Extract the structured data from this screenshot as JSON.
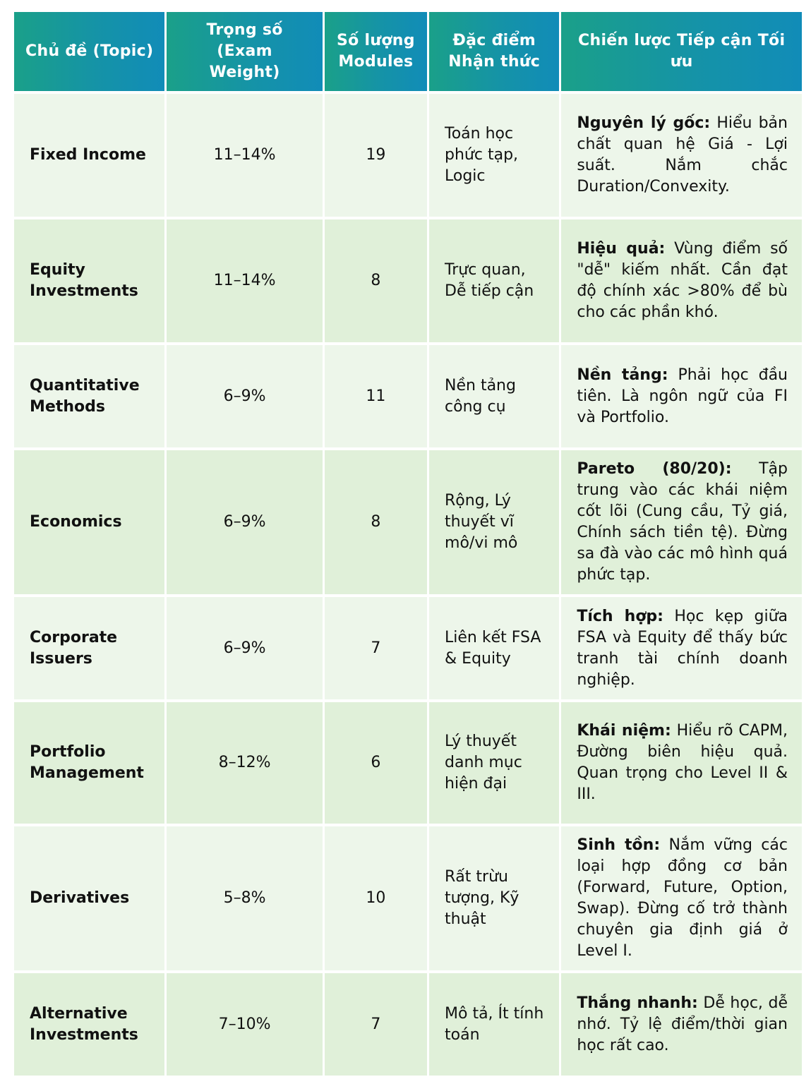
{
  "headers": {
    "topic": "Chủ đề (Topic)",
    "weight": "Trọng số (Exam Weight)",
    "modules": "Số lượng Modules",
    "traits": "Đặc điểm Nhận thức",
    "strategy": "Chiến lược Tiếp cận Tối ưu"
  },
  "rows": [
    {
      "topic": "Fixed Income",
      "weight": "11–14%",
      "modules": "19",
      "traits": "Toán học phức tạp, Logic",
      "strategy_lead": "Nguyên lý gốc:",
      "strategy_text": " Hiểu bản chất quan hệ Giá - Lợi suất. Nắm chắc Duration/Convexity."
    },
    {
      "topic": "Equity Investments",
      "weight": "11–14%",
      "modules": "8",
      "traits": "Trực quan, Dễ tiếp cận",
      "strategy_lead": "Hiệu quả:",
      "strategy_text": " Vùng điểm số \"dễ\" kiếm nhất. Cần đạt độ chính xác >80% để bù cho các phần khó."
    },
    {
      "topic": "Quantitative Methods",
      "weight": "6–9%",
      "modules": "11",
      "traits": "Nền tảng công cụ",
      "strategy_lead": "Nền tảng:",
      "strategy_text": " Phải học đầu tiên. Là ngôn ngữ của FI và Portfolio."
    },
    {
      "topic": "Economics",
      "weight": "6–9%",
      "modules": "8",
      "traits": "Rộng, Lý thuyết vĩ mô/vi mô",
      "strategy_lead": "Pareto (80/20):",
      "strategy_text": " Tập trung vào các khái niệm cốt lõi (Cung cầu, Tỷ giá, Chính sách tiền tệ). Đừng sa đà vào các mô hình quá phức tạp."
    },
    {
      "topic": "Corporate Issuers",
      "weight": "6–9%",
      "modules": "7",
      "traits": "Liên kết FSA & Equity",
      "strategy_lead": "Tích hợp:",
      "strategy_text": " Học kẹp giữa FSA và Equity để thấy bức tranh tài chính doanh nghiệp."
    },
    {
      "topic": "Portfolio Management",
      "weight": "8–12%",
      "modules": "6",
      "traits": "Lý thuyết danh mục hiện đại",
      "strategy_lead": "Khái niệm:",
      "strategy_text": " Hiểu rõ CAPM, Đường biên hiệu quả. Quan trọng cho Level II & III."
    },
    {
      "topic": "Derivatives",
      "weight": "5–8%",
      "modules": "10",
      "traits": "Rất trừu tượng, Kỹ thuật",
      "strategy_lead": "Sinh tồn:",
      "strategy_text": " Nắm vững các loại hợp đồng cơ bản (Forward, Future, Option, Swap). Đừng cố trở thành chuyên gia định giá ở Level I."
    },
    {
      "topic": "Alternative Investments",
      "weight": "7–10%",
      "modules": "7",
      "traits": "Mô tả, Ít tính toán",
      "strategy_lead": "Thắng nhanh:",
      "strategy_text": " Dễ học, dễ nhớ. Tỷ lệ điểm/thời gian học rất cao."
    }
  ]
}
